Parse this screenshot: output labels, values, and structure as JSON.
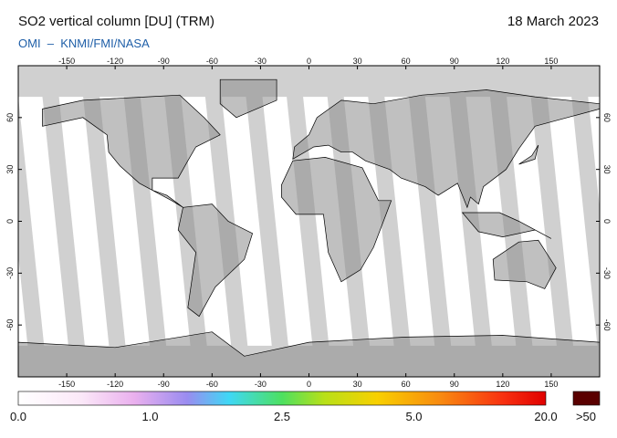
{
  "header": {
    "title": "SO2 vertical column [DU] (TRM)",
    "date": "18 March 2023",
    "source": "OMI  –  KNMI/FMI/NASA"
  },
  "map": {
    "lon_ticks": [
      -150,
      -120,
      -90,
      -60,
      -30,
      0,
      30,
      60,
      90,
      120,
      150
    ],
    "lat_ticks": [
      60,
      30,
      0,
      -30,
      -60
    ]
  },
  "colorbar": {
    "labels": [
      "0.0",
      "1.0",
      "2.5",
      "5.0",
      "20.0"
    ],
    "overflow_label": ">50"
  }
}
